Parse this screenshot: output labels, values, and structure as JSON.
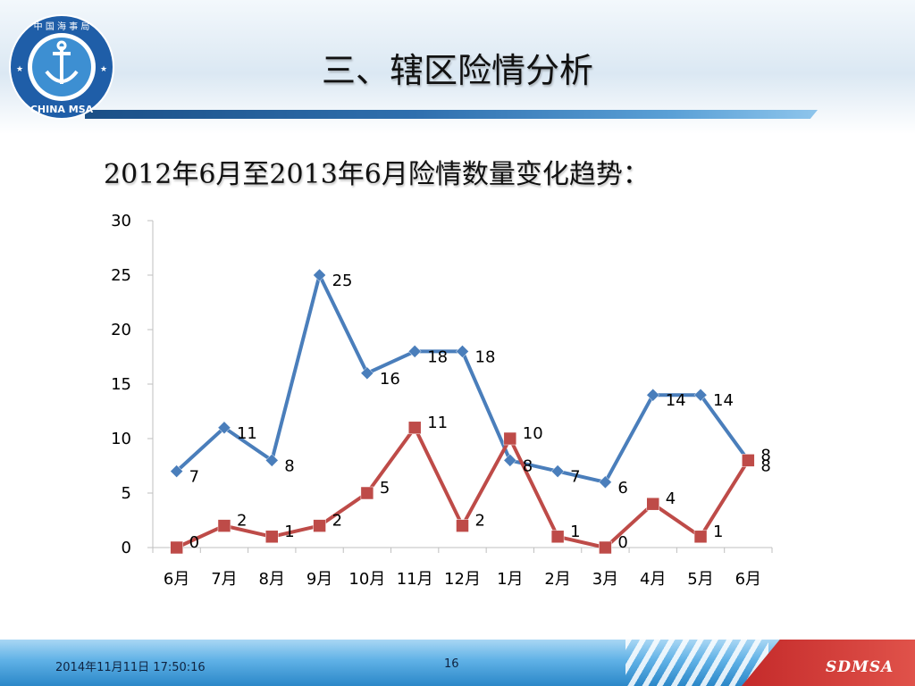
{
  "slide": {
    "title": "三、辖区险情分析",
    "heading": "2012年6月至2013年6月险情数量变化趋势：",
    "logo_text_top": "中 国 海 事 局",
    "logo_text_bottom": "CHINA MSA"
  },
  "footer": {
    "date": "2014年11月11日  17:50:16",
    "page": "16",
    "brand": "SDMSA"
  },
  "colors": {
    "series1": "#4a7ebb",
    "series2": "#be4b48",
    "axis": "#bfbfbf"
  },
  "chart_data": {
    "type": "line",
    "categories": [
      "6月",
      "7月",
      "8月",
      "9月",
      "10月",
      "11月",
      "12月",
      "1月",
      "2月",
      "3月",
      "4月",
      "5月",
      "6月"
    ],
    "series": [
      {
        "values": [
          7,
          11,
          8,
          25,
          16,
          18,
          18,
          8,
          7,
          6,
          14,
          14,
          8
        ],
        "marker": "diamond"
      },
      {
        "values": [
          0,
          2,
          1,
          2,
          5,
          11,
          2,
          10,
          1,
          0,
          4,
          1,
          8
        ],
        "marker": "square"
      }
    ],
    "ylim": [
      0,
      30
    ],
    "yticks": [
      0,
      5,
      10,
      15,
      20,
      25,
      30
    ],
    "data_labels": true,
    "legend": "none",
    "grid": false
  }
}
